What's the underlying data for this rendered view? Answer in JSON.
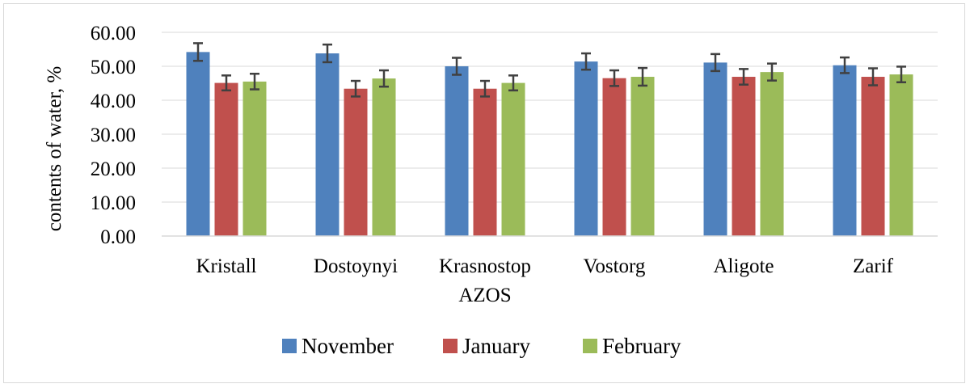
{
  "chart_data": {
    "type": "bar",
    "title": "",
    "xlabel": "",
    "ylabel": "contents of water, %",
    "ylim": [
      0,
      60
    ],
    "yticks": [
      "0.00",
      "10.00",
      "20.00",
      "30.00",
      "40.00",
      "50.00",
      "60.00"
    ],
    "categories": [
      [
        "Kristall"
      ],
      [
        "Dostoynyi"
      ],
      [
        "Krasnostop",
        "AZOS"
      ],
      [
        "Vostorg"
      ],
      [
        "Aligote"
      ],
      [
        "Zarif"
      ]
    ],
    "series": [
      {
        "name": "November",
        "color": "#4f81bd",
        "values": [
          54.2,
          53.8,
          50.0,
          51.4,
          51.1,
          50.3
        ],
        "errors": [
          2.6,
          2.6,
          2.5,
          2.4,
          2.5,
          2.3
        ]
      },
      {
        "name": "January",
        "color": "#c0504d",
        "values": [
          45.1,
          43.4,
          43.4,
          46.5,
          46.9,
          46.9
        ],
        "errors": [
          2.2,
          2.3,
          2.3,
          2.3,
          2.3,
          2.5
        ]
      },
      {
        "name": "February",
        "color": "#9bbb59",
        "values": [
          45.5,
          46.4,
          45.1,
          46.9,
          48.3,
          47.6
        ],
        "errors": [
          2.3,
          2.4,
          2.2,
          2.6,
          2.5,
          2.3
        ]
      }
    ],
    "error_bars": true,
    "grid": "horizontal",
    "legend_position": "bottom"
  }
}
